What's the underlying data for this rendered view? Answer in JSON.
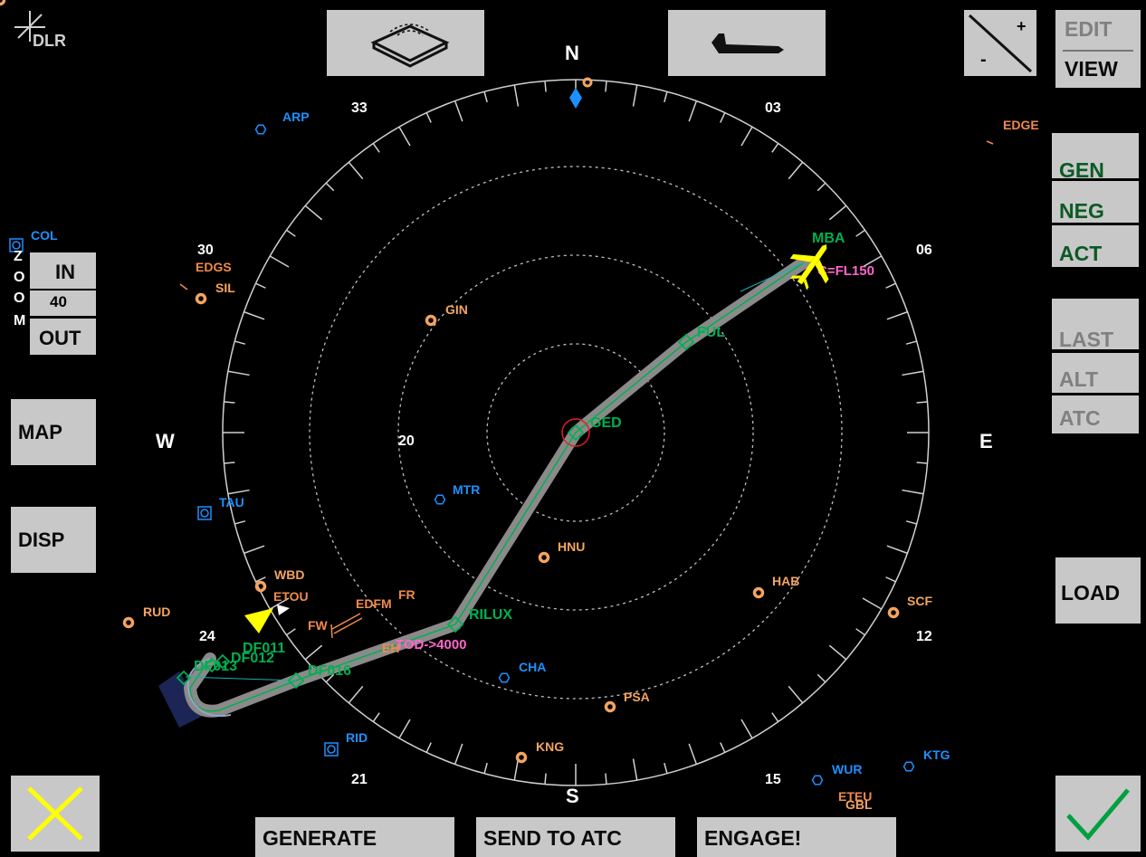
{
  "logo": {
    "text": "DLR"
  },
  "compass": {
    "cardinals": {
      "north": "N",
      "south": "S",
      "east": "E",
      "west": "W"
    },
    "headings": [
      "33",
      "03",
      "30",
      "06",
      "24",
      "12",
      "21",
      "15"
    ],
    "range_label": "20"
  },
  "zoom": {
    "letters": [
      "Z",
      "O",
      "O",
      "M"
    ],
    "in_label": "IN",
    "value": "40",
    "out_label": "OUT"
  },
  "left_buttons": {
    "map_label": "MAP",
    "disp_label": "DISP"
  },
  "right_panel": {
    "edit_label": "EDIT",
    "view_label": "VIEW",
    "gen_label": "GEN",
    "neg_label": "NEG",
    "act_label": "ACT",
    "last_label": "LAST",
    "alt_label": "ALT",
    "atc_label": "ATC",
    "load_label": "LOAD"
  },
  "top_buttons": {
    "plus": "+",
    "minus": "-"
  },
  "bottom_bar": {
    "generate_label": "GENERATE",
    "send_label": "SEND TO ATC",
    "engage_label": "ENGAGE!"
  },
  "colors": {
    "beacon": "#f4a460",
    "vor": "#1e90ff",
    "airport": "#f08a4b",
    "route": "#00b050",
    "constraint": "#ff66cc",
    "aircraft": "#ffff00"
  },
  "navaids": [
    {
      "label": "ARP",
      "kind": "vor"
    },
    {
      "label": "COL",
      "kind": "vor-square"
    },
    {
      "label": "EDGS",
      "kind": "airport-label"
    },
    {
      "label": "SIL",
      "kind": "beacon"
    },
    {
      "label": "GIN",
      "kind": "beacon"
    },
    {
      "label": "EDGE",
      "kind": "airport-label"
    },
    {
      "label": "MTR",
      "kind": "vor"
    },
    {
      "label": "TAU",
      "kind": "vor-square"
    },
    {
      "label": "HNU",
      "kind": "beacon"
    },
    {
      "label": "WBD",
      "kind": "beacon"
    },
    {
      "label": "ETOU",
      "kind": "airport-label"
    },
    {
      "label": "RUD",
      "kind": "beacon"
    },
    {
      "label": "HAB",
      "kind": "beacon"
    },
    {
      "label": "SCF",
      "kind": "beacon"
    },
    {
      "label": "CHA",
      "kind": "vor"
    },
    {
      "label": "PSA",
      "kind": "beacon"
    },
    {
      "label": "KNG",
      "kind": "beacon"
    },
    {
      "label": "RID",
      "kind": "vor-square"
    },
    {
      "label": "WUR",
      "kind": "vor"
    },
    {
      "label": "KTG",
      "kind": "vor"
    },
    {
      "label": "ETEU",
      "kind": "airport-label"
    },
    {
      "label": "GBL",
      "kind": "beacon"
    },
    {
      "label": "EDFM",
      "kind": "airport-label"
    },
    {
      "label": "FR",
      "kind": "text"
    },
    {
      "label": "FW",
      "kind": "text"
    },
    {
      "label": "EH",
      "kind": "text"
    }
  ],
  "route": {
    "waypoints": [
      "MBA",
      "FUL",
      "GED",
      "RILUX",
      "DF016",
      "DF011",
      "DF012",
      "DF013"
    ],
    "constraints": [
      "C=FL150",
      "TOD->4000"
    ]
  }
}
